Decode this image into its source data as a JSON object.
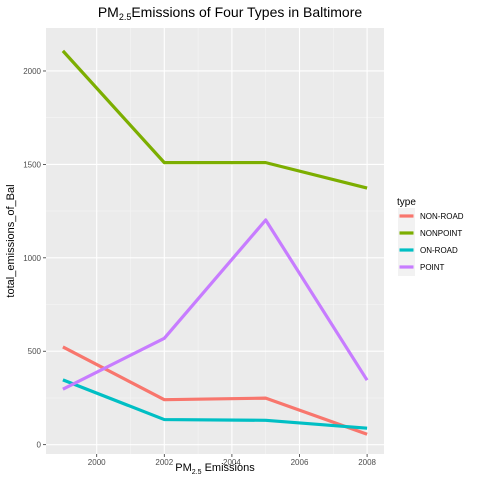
{
  "chart_data": {
    "type": "line",
    "title": {
      "prefix": "PM",
      "sub": "2.5",
      "suffix": "Emissions of Four Types in Baltimore"
    },
    "xlabel": {
      "prefix": "PM",
      "sub": "2.5",
      "suffix": " Emissions"
    },
    "ylabel": "total_emissions_of_Bal",
    "x": [
      1999,
      2002,
      2005,
      2008
    ],
    "xlim": [
      1998.5,
      2008.5
    ],
    "ylim": [
      -50,
      2230
    ],
    "xticks": [
      2000,
      2002,
      2004,
      2006,
      2008
    ],
    "yticks": [
      0,
      500,
      1000,
      1500,
      2000
    ],
    "grid": true,
    "legend": {
      "title": "type",
      "position": "right"
    },
    "series": [
      {
        "name": "NON-ROAD",
        "color": "#F8766D",
        "values": [
          522.9,
          240.8,
          248.9,
          55.8
        ]
      },
      {
        "name": "NONPOINT",
        "color": "#7CAE00",
        "values": [
          2107.6,
          1509.5,
          1509.5,
          1373.2
        ]
      },
      {
        "name": "ON-ROAD",
        "color": "#00BFC4",
        "values": [
          346.8,
          134.3,
          130.4,
          88.3
        ]
      },
      {
        "name": "POINT",
        "color": "#C77CFF",
        "values": [
          296.8,
          569.3,
          1202.5,
          345.0
        ]
      }
    ]
  }
}
